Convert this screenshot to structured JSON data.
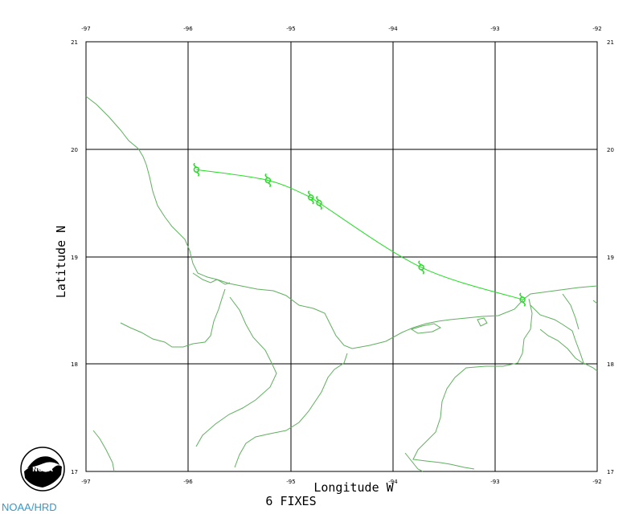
{
  "map": {
    "x_axis_label": "Longitude W",
    "y_axis_label": "Latitude N",
    "fix_count_label": "6 FIXES",
    "longitude_ticks": [
      "-97",
      "-96",
      "-95",
      "-94",
      "-93",
      "-92"
    ],
    "latitude_ticks": [
      "21",
      "20",
      "19",
      "18",
      "17"
    ],
    "lon_range": [
      -97,
      -92
    ],
    "lat_range": [
      17,
      21
    ],
    "colors": {
      "coastline": "#5fb05f",
      "track": "#22dd22",
      "grid": "#000000",
      "credit": "#3399cc"
    }
  },
  "storm_fixes": [
    {
      "lon": -95.92,
      "lat": 19.81
    },
    {
      "lon": -95.22,
      "lat": 19.71
    },
    {
      "lon": -94.8,
      "lat": 19.55
    },
    {
      "lon": -94.72,
      "lat": 19.5
    },
    {
      "lon": -93.72,
      "lat": 18.9
    },
    {
      "lon": -92.73,
      "lat": 18.6
    }
  ],
  "logo": {
    "icon": "noaa-logo",
    "text": "NOAA"
  },
  "credit": {
    "text": "NOAA/HRD"
  }
}
